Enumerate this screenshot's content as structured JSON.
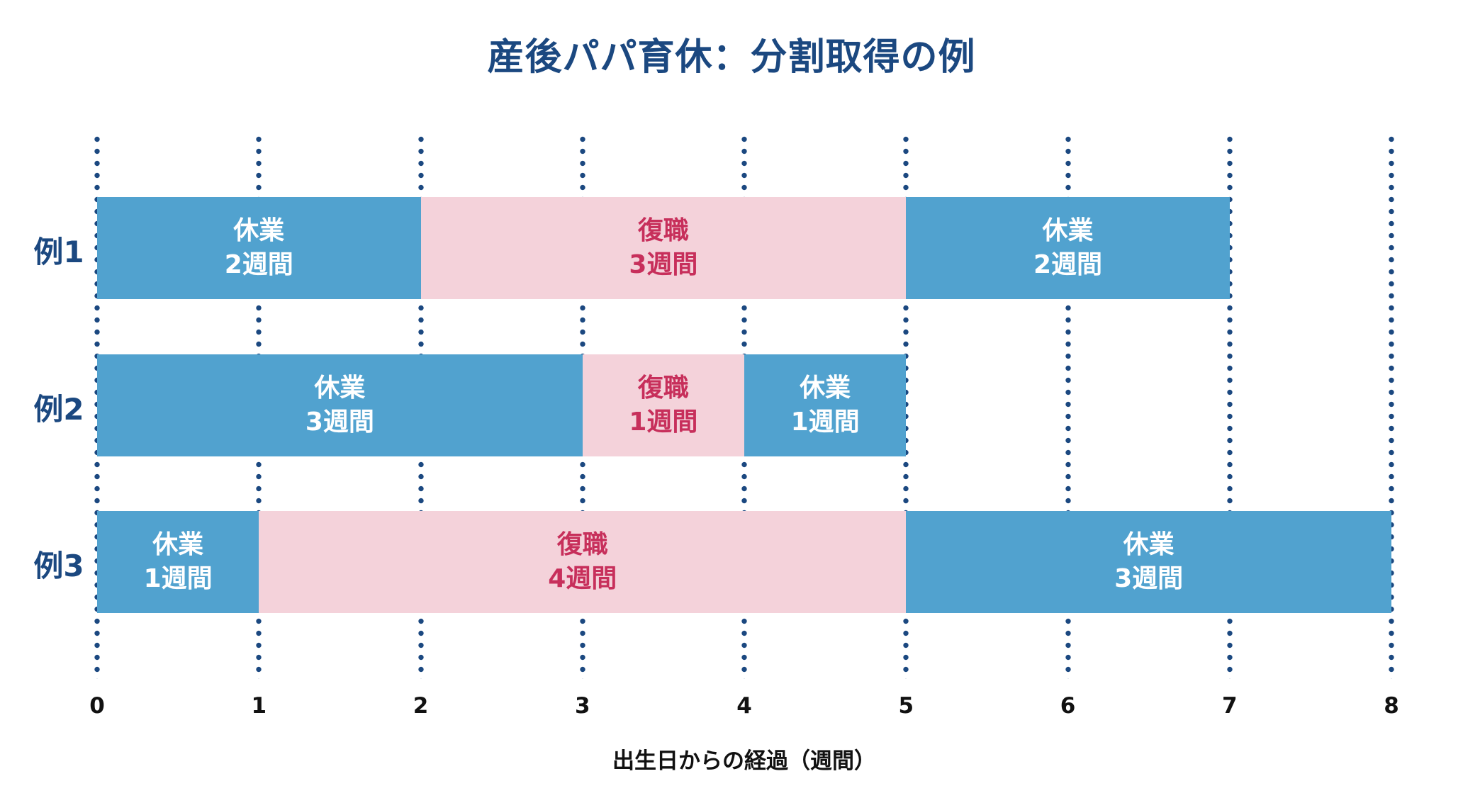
{
  "colors": {
    "navy": "#1b4880",
    "leave_blue": "#51a2cf",
    "work_pink": "#f4d2da",
    "work_text_crimson": "#c72f5b",
    "axis_text": "#111111",
    "background": "#ffffff"
  },
  "chart_data": {
    "type": "bar",
    "orientation": "horizontal-segmented-gantt",
    "title": "産後パパ育休：分割取得の例",
    "xlabel": "出生日からの経過（週間）",
    "xlim": [
      0,
      8
    ],
    "x_ticks": [
      "0",
      "1",
      "2",
      "3",
      "4",
      "5",
      "6",
      "7",
      "8"
    ],
    "grid": "dotted-vertical-navy",
    "legend": "none",
    "segment_types": {
      "leave": {
        "name": "休業",
        "color": "#51a2cf",
        "text_color": "#ffffff"
      },
      "work": {
        "name": "復職",
        "color": "#f4d2da",
        "text_color": "#c72f5b"
      }
    },
    "rows": [
      {
        "label": "例1",
        "segments": [
          {
            "type": "leave",
            "name": "休業",
            "duration": "2週間",
            "start": 0,
            "end": 2
          },
          {
            "type": "work",
            "name": "復職",
            "duration": "3週間",
            "start": 2,
            "end": 5
          },
          {
            "type": "leave",
            "name": "休業",
            "duration": "2週間",
            "start": 5,
            "end": 7
          }
        ]
      },
      {
        "label": "例2",
        "segments": [
          {
            "type": "leave",
            "name": "休業",
            "duration": "3週間",
            "start": 0,
            "end": 3
          },
          {
            "type": "work",
            "name": "復職",
            "duration": "1週間",
            "start": 3,
            "end": 4
          },
          {
            "type": "leave",
            "name": "休業",
            "duration": "1週間",
            "start": 4,
            "end": 5
          }
        ]
      },
      {
        "label": "例3",
        "segments": [
          {
            "type": "leave",
            "name": "休業",
            "duration": "1週間",
            "start": 0,
            "end": 1
          },
          {
            "type": "work",
            "name": "復職",
            "duration": "4週間",
            "start": 1,
            "end": 5
          },
          {
            "type": "leave",
            "name": "休業",
            "duration": "3週間",
            "start": 5,
            "end": 8
          }
        ]
      }
    ]
  }
}
